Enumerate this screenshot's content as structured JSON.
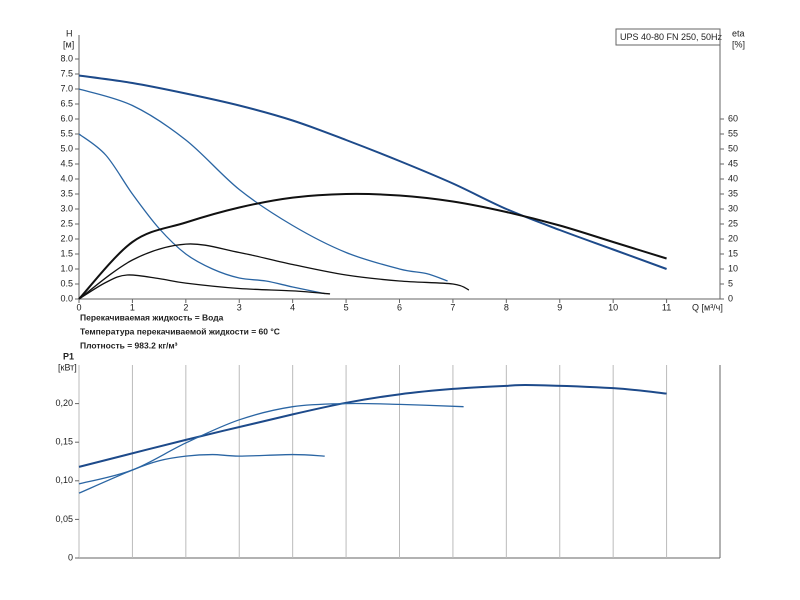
{
  "chart_data": [
    {
      "type": "line",
      "title": "UPS 40-80 FN 250, 50Hz",
      "y_label": "H",
      "y_unit": "[м]",
      "y2_label": "eta",
      "y2_unit": "[%]",
      "x_label": "Q [м³/ч]",
      "notes": [
        "Перекачиваемая жидкость = Вода",
        "Температура перекачиваемой жидкости = 60 °C",
        "Плотность = 983.2 кг/м³"
      ],
      "xlim": [
        0,
        12
      ],
      "xticks": [
        0,
        1,
        2,
        3,
        4,
        5,
        6,
        7,
        8,
        9,
        10,
        11
      ],
      "ylim": [
        0,
        8.8
      ],
      "yticks": [
        {
          "value": 0,
          "label": "0.0"
        },
        0.5,
        {
          "value": 1,
          "label": "1.0"
        },
        1.5,
        {
          "value": 2,
          "label": "2.0"
        },
        2.5,
        {
          "value": 3,
          "label": "3.0"
        },
        3.5,
        {
          "value": 4,
          "label": "4.0"
        },
        4.5,
        {
          "value": 5,
          "label": "5.0"
        },
        5.5,
        {
          "value": 6,
          "label": "6.0"
        },
        6.5,
        {
          "value": 7,
          "label": "7.0"
        },
        7.5,
        {
          "value": 8,
          "label": "8.0"
        }
      ],
      "y2lim": [
        0,
        88
      ],
      "y2ticks": [
        0,
        5,
        10,
        15,
        20,
        25,
        30,
        35,
        40,
        45,
        50,
        55,
        60
      ],
      "grid": false,
      "series": [
        {
          "color": "#1d4a8a",
          "width": 2,
          "x": [
            0,
            1,
            2,
            3,
            4,
            5,
            6,
            7,
            8,
            9,
            10,
            11
          ],
          "values": [
            7.45,
            7.2,
            6.85,
            6.45,
            5.95,
            5.3,
            4.6,
            3.85,
            3.0,
            2.3,
            1.65,
            1.0
          ]
        },
        {
          "color": "#2a65a3",
          "width": 1.3,
          "x": [
            0,
            1,
            2,
            3,
            4,
            5,
            6,
            6.5,
            6.9
          ],
          "values": [
            7.0,
            6.45,
            5.3,
            3.65,
            2.45,
            1.55,
            1.0,
            0.85,
            0.6
          ]
        },
        {
          "color": "#2a65a3",
          "width": 1.3,
          "x": [
            0,
            0.5,
            1,
            1.5,
            2,
            2.5,
            3,
            3.5,
            4,
            4.6
          ],
          "values": [
            5.5,
            4.8,
            3.5,
            2.35,
            1.5,
            1.0,
            0.7,
            0.6,
            0.4,
            0.18
          ]
        },
        {
          "color": "#111111",
          "width": 2,
          "axis": "y2",
          "x": [
            0,
            1,
            2,
            3,
            4,
            5,
            6,
            7,
            8,
            9,
            10,
            11
          ],
          "values": [
            0,
            19,
            25.5,
            30.5,
            33.8,
            35,
            34.5,
            32.5,
            29,
            24.5,
            19,
            13.5
          ]
        },
        {
          "color": "#111111",
          "width": 1.3,
          "axis": "y2",
          "x": [
            0,
            1,
            2,
            3,
            4,
            5,
            6,
            7,
            7.3
          ],
          "values": [
            0,
            13,
            18.3,
            15.5,
            11.5,
            8,
            6,
            5,
            3
          ]
        },
        {
          "color": "#111111",
          "width": 1.3,
          "axis": "y2",
          "x": [
            0,
            0.5,
            0.9,
            1.5,
            2,
            3,
            4,
            4.7
          ],
          "values": [
            0,
            5.5,
            8,
            6.8,
            5.3,
            3.5,
            2.7,
            1.7
          ]
        }
      ]
    },
    {
      "type": "line",
      "y_label": "P1",
      "y_unit": "[кВт]",
      "xlim": [
        0,
        12
      ],
      "xticks": [
        0,
        1,
        2,
        3,
        4,
        5,
        6,
        7,
        8,
        9,
        10,
        11
      ],
      "ylim": [
        0,
        0.25
      ],
      "yticks": [
        0,
        {
          "value": 0.05,
          "label": "0,05"
        },
        {
          "value": 0.1,
          "label": "0,10"
        },
        {
          "value": 0.15,
          "label": "0,15"
        },
        {
          "value": 0.2,
          "label": "0,20"
        }
      ],
      "grid": true,
      "series": [
        {
          "color": "#1d4a8a",
          "width": 2,
          "x": [
            0,
            2,
            4,
            5,
            6,
            7,
            8,
            8.5,
            10,
            11
          ],
          "values": [
            0.118,
            0.153,
            0.186,
            0.201,
            0.212,
            0.219,
            0.223,
            0.224,
            0.22,
            0.213
          ]
        },
        {
          "color": "#2a65a3",
          "width": 1.3,
          "x": [
            0,
            1,
            2,
            3,
            4,
            5,
            6,
            7.2
          ],
          "values": [
            0.096,
            0.114,
            0.149,
            0.179,
            0.196,
            0.2,
            0.199,
            0.196
          ]
        },
        {
          "color": "#2a65a3",
          "width": 1.3,
          "x": [
            0,
            1,
            1.5,
            2,
            2.5,
            3,
            4,
            4.6
          ],
          "values": [
            0.084,
            0.114,
            0.126,
            0.132,
            0.134,
            0.132,
            0.134,
            0.132
          ]
        }
      ]
    }
  ]
}
